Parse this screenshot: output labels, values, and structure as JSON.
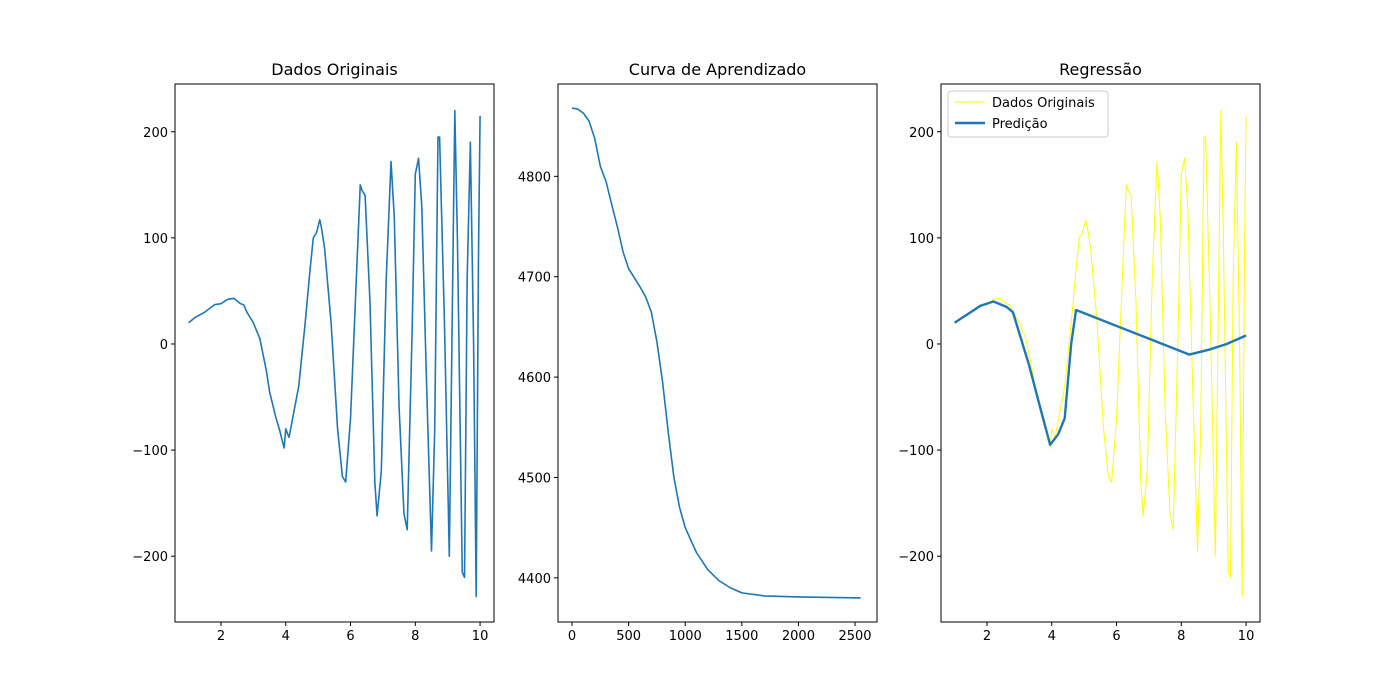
{
  "chart_data": [
    {
      "type": "line",
      "title": "Dados Originais",
      "color": "#1f77b4",
      "line_width": 1.6,
      "x": [
        1.0,
        1.2,
        1.5,
        1.8,
        2.0,
        2.2,
        2.4,
        2.6,
        2.7,
        2.8,
        3.0,
        3.2,
        3.4,
        3.5,
        3.7,
        3.8,
        3.95,
        4.0,
        4.1,
        4.2,
        4.4,
        4.6,
        4.75,
        4.85,
        4.95,
        5.05,
        5.1,
        5.2,
        5.4,
        5.6,
        5.75,
        5.85,
        6.0,
        6.15,
        6.3,
        6.35,
        6.45,
        6.6,
        6.75,
        6.82,
        6.95,
        7.1,
        7.25,
        7.35,
        7.5,
        7.65,
        7.75,
        7.9,
        8.0,
        8.1,
        8.2,
        8.35,
        8.5,
        8.6,
        8.7,
        8.75,
        8.9,
        9.05,
        9.15,
        9.22,
        9.3,
        9.45,
        9.52,
        9.6,
        9.7,
        9.8,
        9.88,
        9.95,
        10.0
      ],
      "values": [
        20,
        25,
        30,
        37,
        38,
        42,
        43,
        38,
        37,
        30,
        20,
        5,
        -25,
        -45,
        -70,
        -80,
        -98,
        -80,
        -88,
        -72,
        -40,
        20,
        70,
        100,
        105,
        117,
        110,
        90,
        20,
        -80,
        -125,
        -130,
        -70,
        40,
        150,
        145,
        140,
        40,
        -130,
        -162,
        -120,
        60,
        172,
        120,
        -60,
        -160,
        -175,
        10,
        160,
        175,
        130,
        -40,
        -195,
        -80,
        195,
        195,
        20,
        -200,
        50,
        220,
        100,
        -215,
        -220,
        60,
        190,
        0,
        -238,
        80,
        215
      ],
      "xlim": [
        0.58,
        10.43
      ],
      "ylim": [
        -262,
        245
      ],
      "xticks": [
        2,
        4,
        6,
        8,
        10
      ],
      "yticks": [
        {
          "value": -200,
          "label": "−200"
        },
        {
          "value": -100,
          "label": "−100"
        },
        0,
        100,
        200
      ]
    },
    {
      "type": "line",
      "title": "Curva de Aprendizado",
      "color": "#1f77b4",
      "line_width": 1.6,
      "x": [
        0,
        50,
        100,
        150,
        200,
        250,
        300,
        350,
        400,
        450,
        500,
        600,
        650,
        700,
        750,
        800,
        850,
        900,
        950,
        1000,
        1100,
        1200,
        1300,
        1400,
        1500,
        1700,
        2000,
        2550
      ],
      "values": [
        4868,
        4867,
        4863,
        4855,
        4838,
        4810,
        4795,
        4772,
        4750,
        4725,
        4708,
        4690,
        4680,
        4665,
        4635,
        4595,
        4545,
        4500,
        4470,
        4450,
        4425,
        4408,
        4397,
        4390,
        4385,
        4382,
        4381,
        4380
      ],
      "xlim": [
        -124,
        2694
      ],
      "ylim": [
        4356,
        4892
      ],
      "xticks": [
        0,
        500,
        1000,
        1500,
        2000,
        2500
      ],
      "yticks": [
        4400,
        4500,
        4600,
        4700,
        4800
      ]
    },
    {
      "type": "line",
      "title": "Regressão",
      "legend": "upper left",
      "series": [
        {
          "name": "Dados Originais",
          "color": "yellow",
          "line_width": 1,
          "x": [
            1.0,
            1.2,
            1.5,
            1.8,
            2.0,
            2.2,
            2.4,
            2.6,
            2.7,
            2.8,
            3.0,
            3.2,
            3.4,
            3.5,
            3.7,
            3.8,
            3.95,
            4.0,
            4.1,
            4.2,
            4.4,
            4.6,
            4.75,
            4.85,
            4.95,
            5.05,
            5.1,
            5.2,
            5.4,
            5.6,
            5.75,
            5.85,
            6.0,
            6.15,
            6.3,
            6.35,
            6.45,
            6.6,
            6.75,
            6.82,
            6.95,
            7.1,
            7.25,
            7.35,
            7.5,
            7.65,
            7.75,
            7.9,
            8.0,
            8.1,
            8.2,
            8.35,
            8.5,
            8.6,
            8.7,
            8.75,
            8.9,
            9.05,
            9.15,
            9.22,
            9.3,
            9.45,
            9.52,
            9.6,
            9.7,
            9.8,
            9.88,
            9.95,
            10.0
          ],
          "values": [
            20,
            25,
            30,
            37,
            38,
            42,
            43,
            38,
            37,
            30,
            20,
            5,
            -25,
            -45,
            -70,
            -80,
            -98,
            -80,
            -88,
            -72,
            -40,
            20,
            70,
            100,
            105,
            117,
            110,
            90,
            20,
            -80,
            -125,
            -130,
            -70,
            40,
            150,
            145,
            140,
            40,
            -130,
            -162,
            -120,
            60,
            172,
            120,
            -60,
            -160,
            -175,
            10,
            160,
            175,
            130,
            -40,
            -195,
            -80,
            195,
            195,
            20,
            -200,
            50,
            220,
            100,
            -215,
            -220,
            60,
            190,
            0,
            -238,
            80,
            215
          ]
        },
        {
          "name": "Predição",
          "color": "#1f77b4",
          "line_width": 2.4,
          "x": [
            1.0,
            1.5,
            1.8,
            2.2,
            2.6,
            2.8,
            3.0,
            3.3,
            3.6,
            3.95,
            4.2,
            4.4,
            4.6,
            4.75,
            8.25,
            8.9,
            9.4,
            10.0
          ],
          "values": [
            20,
            30,
            36,
            40,
            35,
            30,
            10,
            -20,
            -55,
            -95,
            -85,
            -70,
            0,
            32,
            -10,
            -5,
            0,
            8
          ]
        }
      ],
      "xlim": [
        0.58,
        10.43
      ],
      "ylim": [
        -262,
        245
      ],
      "xticks": [
        2,
        4,
        6,
        8,
        10
      ],
      "yticks": [
        {
          "value": -200,
          "label": "−200"
        },
        {
          "value": -100,
          "label": "−100"
        },
        0,
        100,
        200
      ]
    }
  ]
}
